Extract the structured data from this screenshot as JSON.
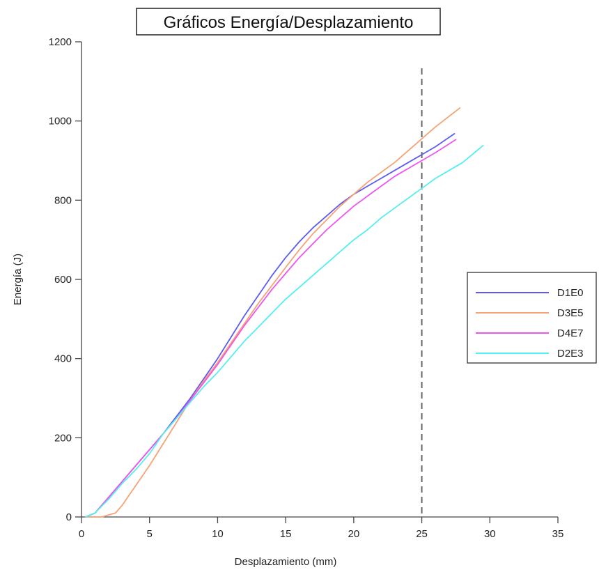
{
  "chart_data": {
    "type": "line",
    "title": "Gráficos Energía/Desplazamiento",
    "xlabel": "Desplazamiento (mm)",
    "ylabel": "Energía (J)",
    "xlim": [
      0,
      35
    ],
    "ylim": [
      0,
      1200
    ],
    "xticks": [
      0,
      5,
      10,
      15,
      20,
      25,
      30,
      35
    ],
    "yticks": [
      0,
      200,
      400,
      600,
      800,
      1000,
      1200
    ],
    "grid": false,
    "legend_position": "right",
    "reference_line": {
      "axis": "x",
      "value": 25,
      "style": "dashed",
      "color": "#666666"
    },
    "series": [
      {
        "name": "D1E0",
        "color": "#5b5bef",
        "x": [
          0.3,
          1.0,
          2.0,
          3.0,
          4.0,
          5.0,
          6.0,
          7.0,
          8.0,
          9.0,
          10.0,
          11.0,
          12.0,
          13.0,
          14.0,
          15.0,
          16.0,
          17.0,
          18.0,
          19.0,
          20.0,
          21.0,
          22.0,
          23.0,
          24.0,
          25.0,
          26.0,
          27.4
        ],
        "y": [
          0,
          10,
          50,
          90,
          130,
          170,
          210,
          255,
          300,
          350,
          400,
          455,
          510,
          560,
          610,
          655,
          695,
          730,
          760,
          790,
          815,
          835,
          855,
          875,
          895,
          915,
          935,
          968
        ]
      },
      {
        "name": "D3E5",
        "color": "#f5a274",
        "x": [
          0.3,
          1.5,
          2.5,
          3.0,
          4.0,
          5.0,
          6.0,
          7.0,
          8.0,
          9.0,
          10.0,
          11.0,
          12.0,
          13.0,
          14.0,
          15.0,
          16.0,
          17.0,
          18.0,
          19.0,
          20.0,
          21.0,
          22.0,
          23.0,
          24.0,
          25.0,
          26.0,
          27.8
        ],
        "y": [
          0,
          0,
          10,
          30,
          80,
          130,
          185,
          240,
          295,
          345,
          390,
          440,
          490,
          540,
          585,
          630,
          675,
          715,
          750,
          785,
          815,
          845,
          870,
          895,
          925,
          955,
          985,
          1033
        ]
      },
      {
        "name": "D4E7",
        "color": "#ee55ee",
        "x": [
          0.3,
          1.0,
          2.0,
          3.0,
          4.0,
          5.0,
          6.0,
          7.0,
          8.0,
          9.0,
          10.0,
          11.0,
          12.0,
          13.0,
          14.0,
          15.0,
          16.0,
          17.0,
          18.0,
          19.0,
          20.0,
          21.0,
          22.0,
          23.0,
          24.0,
          25.0,
          26.0,
          27.5
        ],
        "y": [
          0,
          10,
          50,
          90,
          130,
          170,
          210,
          250,
          295,
          340,
          385,
          435,
          485,
          530,
          575,
          615,
          655,
          690,
          725,
          755,
          785,
          810,
          835,
          860,
          880,
          900,
          920,
          953
        ]
      },
      {
        "name": "D2E3",
        "color": "#55eeee",
        "x": [
          0.3,
          1.0,
          2.0,
          3.0,
          4.0,
          5.0,
          6.0,
          7.0,
          8.0,
          9.0,
          10.0,
          11.0,
          12.0,
          13.0,
          14.0,
          15.0,
          16.0,
          17.0,
          18.0,
          19.0,
          20.0,
          21.0,
          22.0,
          23.0,
          24.0,
          25.0,
          26.0,
          27.0,
          28.0,
          29.5
        ],
        "y": [
          0,
          10,
          45,
          85,
          120,
          160,
          210,
          250,
          290,
          330,
          365,
          405,
          445,
          480,
          515,
          550,
          580,
          610,
          640,
          670,
          700,
          725,
          755,
          780,
          805,
          830,
          855,
          875,
          895,
          938
        ]
      }
    ]
  }
}
